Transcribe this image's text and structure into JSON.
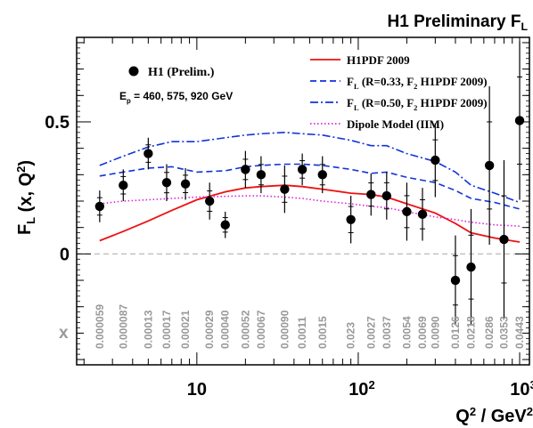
{
  "chart_data": {
    "type": "scatter",
    "title": "H1 Preliminary F",
    "title_subscript": "L",
    "ylabel": "F",
    "ylabel_subscript": "L",
    "ylabel_suffix": " (x, Q",
    "ylabel_sup": "2",
    "ylabel_end": ")",
    "xlabel_prefix": "Q",
    "xlabel_sup": "2",
    "xlabel_mid": " / GeV",
    "xlabel_sup2": "2",
    "x_scale": "log",
    "xlim": [
      1.8,
      1150
    ],
    "ylim": [
      -0.42,
      0.82
    ],
    "y_ticks": [
      {
        "value": 0.5,
        "label": "0.5"
      },
      {
        "value": 0,
        "label": "0"
      }
    ],
    "x_ticks": [
      {
        "value": 10,
        "label": "10",
        "sup": ""
      },
      {
        "value": 100,
        "label": "10",
        "sup": "2"
      },
      {
        "value": 1000,
        "label": "10",
        "sup": "3"
      }
    ],
    "zero_line": true,
    "data_legend": "H1 (Prelim.)",
    "energy_text": "E",
    "energy_sub": "p",
    "energy_values": " = 460, 575, 920 GeV",
    "legend": [
      {
        "label": "H1PDF 2009",
        "color": "#ee1111",
        "style": "solid"
      },
      {
        "label": "F",
        "sub": "L",
        "label_rest": " (R=0.33, F",
        "sub2": "2",
        "label_end": " H1PDF 2009)",
        "color": "#1133dd",
        "style": "dashed"
      },
      {
        "label": "F",
        "sub": "L",
        "label_rest": " (R=0.50, F",
        "sub2": "2",
        "label_end": " H1PDF 2009)",
        "color": "#1133dd",
        "style": "dashdot"
      },
      {
        "label": "Dipole Model (IIM)",
        "color": "#dd22dd",
        "style": "dotted"
      }
    ],
    "x_symbol": "x",
    "points": [
      {
        "q2": 2.5,
        "y": 0.18,
        "err": 0.06,
        "x": "0.000059"
      },
      {
        "q2": 3.5,
        "y": 0.26,
        "err": 0.06,
        "x": "0.000087"
      },
      {
        "q2": 5.0,
        "y": 0.38,
        "err": 0.06,
        "x": "0.00013"
      },
      {
        "q2": 6.5,
        "y": 0.27,
        "err": 0.07,
        "x": "0.00017"
      },
      {
        "q2": 8.5,
        "y": 0.265,
        "err": 0.06,
        "x": "0.00021"
      },
      {
        "q2": 12,
        "y": 0.2,
        "err": 0.07,
        "x": "0.00029"
      },
      {
        "q2": 15,
        "y": 0.11,
        "err": 0.05,
        "x": "0.00040"
      },
      {
        "q2": 20,
        "y": 0.32,
        "err": 0.07,
        "x": "0.00052"
      },
      {
        "q2": 25,
        "y": 0.3,
        "err": 0.07,
        "x": "0.00067"
      },
      {
        "q2": 35,
        "y": 0.245,
        "err": 0.09,
        "x": "0.00090"
      },
      {
        "q2": 45,
        "y": 0.32,
        "err": 0.06,
        "x": "0.0011"
      },
      {
        "q2": 60,
        "y": 0.3,
        "err": 0.07,
        "x": "0.0015"
      },
      {
        "q2": 90,
        "y": 0.13,
        "err": 0.09,
        "x": "0.023"
      },
      {
        "q2": 120,
        "y": 0.225,
        "err": 0.08,
        "x": "0.0027"
      },
      {
        "q2": 150,
        "y": 0.22,
        "err": 0.09,
        "x": "0.0037"
      },
      {
        "q2": 200,
        "y": 0.16,
        "err": 0.11,
        "x": "0.0054"
      },
      {
        "q2": 250,
        "y": 0.15,
        "err": 0.1,
        "x": "0.0069"
      },
      {
        "q2": 300,
        "y": 0.355,
        "err": 0.14,
        "x": "0.0090"
      },
      {
        "q2": 400,
        "y": -0.1,
        "err": 0.17,
        "x": "0.0126"
      },
      {
        "q2": 500,
        "y": -0.05,
        "err": 0.22,
        "x": "0.0218"
      },
      {
        "q2": 650,
        "y": 0.335,
        "err": 0.3,
        "x": "0.0286"
      },
      {
        "q2": 800,
        "y": 0.055,
        "err": 0.3,
        "x": "0.0353"
      },
      {
        "q2": 1000,
        "y": 0.505,
        "err": 0.3,
        "x": "0.0443"
      }
    ],
    "series": [
      {
        "style": "solid",
        "color": "#ee1111",
        "q2": [
          2.5,
          3.5,
          5,
          7,
          10,
          15,
          20,
          25,
          35,
          45,
          60,
          90,
          120,
          150,
          200,
          300,
          400,
          500,
          700,
          1000
        ],
        "y": [
          0.05,
          0.085,
          0.125,
          0.165,
          0.205,
          0.235,
          0.25,
          0.255,
          0.26,
          0.255,
          0.245,
          0.23,
          0.225,
          0.215,
          0.19,
          0.155,
          0.115,
          0.08,
          0.06,
          0.045
        ]
      },
      {
        "style": "dashed",
        "color": "#1133dd",
        "q2": [
          2.5,
          3.5,
          5,
          7,
          10,
          15,
          20,
          25,
          35,
          45,
          60,
          90,
          120,
          150,
          200,
          300,
          400,
          500,
          700,
          1000
        ],
        "y": [
          0.295,
          0.31,
          0.325,
          0.33,
          0.31,
          0.315,
          0.33,
          0.335,
          0.34,
          0.34,
          0.335,
          0.32,
          0.305,
          0.31,
          0.29,
          0.27,
          0.24,
          0.21,
          0.195,
          0.17
        ]
      },
      {
        "style": "dashdot",
        "color": "#1133dd",
        "q2": [
          2.5,
          3.5,
          5,
          7,
          10,
          15,
          20,
          25,
          35,
          45,
          60,
          90,
          120,
          150,
          200,
          300,
          400,
          500,
          700,
          1000
        ],
        "y": [
          0.335,
          0.37,
          0.405,
          0.425,
          0.425,
          0.44,
          0.45,
          0.455,
          0.46,
          0.455,
          0.45,
          0.43,
          0.41,
          0.41,
          0.38,
          0.35,
          0.31,
          0.26,
          0.23,
          0.195
        ]
      },
      {
        "style": "dotted",
        "color": "#dd22dd",
        "q2": [
          2.5,
          3.5,
          5,
          7,
          10,
          15,
          20,
          25,
          35,
          45,
          60,
          90,
          120,
          150,
          200,
          300,
          400,
          500,
          700,
          1000
        ],
        "y": [
          0.19,
          0.2,
          0.205,
          0.21,
          0.215,
          0.218,
          0.22,
          0.22,
          0.215,
          0.21,
          0.2,
          0.19,
          0.18,
          0.175,
          0.16,
          0.14,
          0.13,
          0.12,
          0.11,
          0.105
        ]
      }
    ]
  }
}
